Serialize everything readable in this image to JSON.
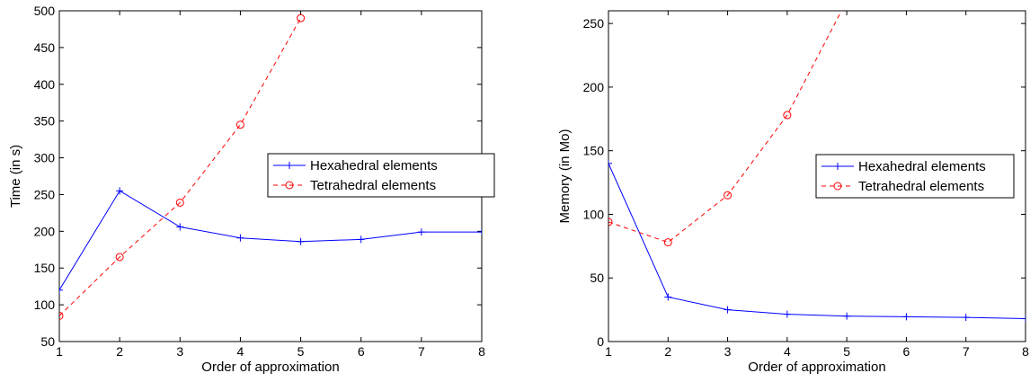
{
  "chart_data": [
    {
      "type": "line",
      "xlabel": "Order of approximation",
      "ylabel": "Time (in s)",
      "xlim": [
        1,
        8
      ],
      "ylim": [
        50,
        500
      ],
      "xticks": [
        "1",
        "2",
        "3",
        "4",
        "5",
        "6",
        "7",
        "8"
      ],
      "yticks": [
        "50",
        "100",
        "150",
        "200",
        "250",
        "300",
        "350",
        "400",
        "450",
        "500"
      ],
      "grid": false,
      "legend_position": "right",
      "series": [
        {
          "name": "Hexahedral elements",
          "color": "#0000ff",
          "line_style": "solid",
          "marker": "plus",
          "x": [
            1,
            2,
            3,
            4,
            5,
            6,
            7,
            8
          ],
          "values": [
            120,
            255,
            206,
            191,
            186,
            189,
            199,
            199
          ]
        },
        {
          "name": "Tetrahedral elements",
          "color": "#ff0000",
          "line_style": "dashed",
          "marker": "circle",
          "x": [
            1,
            2,
            3,
            4,
            5
          ],
          "values": [
            85,
            165,
            239,
            345,
            490
          ]
        }
      ]
    },
    {
      "type": "line",
      "xlabel": "Order of approximation",
      "ylabel": "Memory (in Mo)",
      "xlim": [
        1,
        8
      ],
      "ylim": [
        0,
        260
      ],
      "xticks": [
        "1",
        "2",
        "3",
        "4",
        "5",
        "6",
        "7",
        "8"
      ],
      "yticks": [
        "0",
        "50",
        "100",
        "150",
        "200",
        "250"
      ],
      "grid": false,
      "legend_position": "right",
      "series": [
        {
          "name": "Hexahedral elements",
          "color": "#0000ff",
          "line_style": "solid",
          "marker": "plus",
          "x": [
            1,
            2,
            3,
            4,
            5,
            6,
            7,
            8
          ],
          "values": [
            140,
            35,
            25,
            21.5,
            20,
            19.5,
            19,
            18
          ]
        },
        {
          "name": "Tetrahedral elements",
          "color": "#ff0000",
          "line_style": "dashed",
          "marker": "circle",
          "x": [
            1,
            2,
            3,
            4,
            5
          ],
          "values": [
            94,
            78,
            115,
            178,
            268
          ]
        }
      ]
    }
  ]
}
